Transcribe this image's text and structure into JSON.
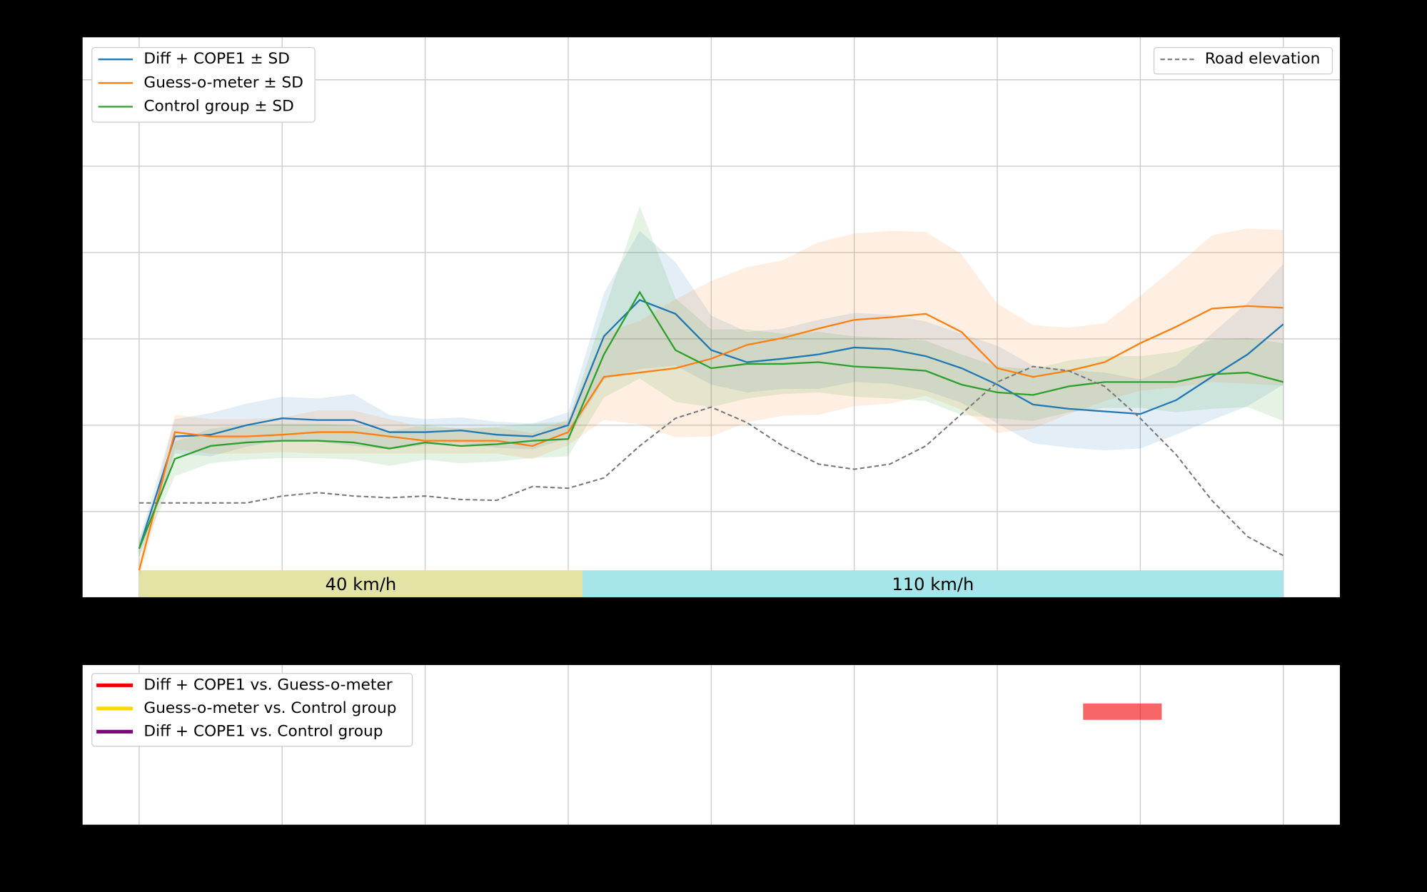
{
  "chart_data": [
    {
      "type": "line",
      "x": [
        0,
        0.25,
        0.5,
        0.75,
        1,
        1.25,
        1.5,
        1.75,
        2,
        2.25,
        2.5,
        2.75,
        3,
        3.25,
        3.5,
        3.75,
        4,
        4.25,
        4.5,
        4.75,
        5,
        5.25,
        5.5,
        5.75,
        6,
        6.25,
        6.5,
        6.75,
        7,
        7.25,
        7.5,
        7.75,
        8
      ],
      "xlim": [
        -0.4,
        8.4
      ],
      "xticks": [
        0,
        1,
        2,
        3,
        4,
        5,
        6,
        7,
        8
      ],
      "ylim": [
        0,
        6.5
      ],
      "yticks": [
        1,
        2,
        3,
        4,
        5,
        6
      ],
      "grid": true,
      "series": [
        {
          "name": "Diff + COPE1 ± SD",
          "color": "#1f77b4",
          "values": [
            0.57,
            1.87,
            1.89,
            2.0,
            2.08,
            2.06,
            2.06,
            1.92,
            1.92,
            1.94,
            1.89,
            1.87,
            2.0,
            3.03,
            3.45,
            3.29,
            2.87,
            2.73,
            2.77,
            2.82,
            2.9,
            2.88,
            2.8,
            2.66,
            2.47,
            2.24,
            2.19,
            2.16,
            2.13,
            2.29,
            2.56,
            2.82,
            3.17
          ],
          "sd": [
            0.1,
            0.2,
            0.25,
            0.25,
            0.25,
            0.25,
            0.3,
            0.2,
            0.15,
            0.15,
            0.15,
            0.15,
            0.15,
            0.5,
            0.8,
            0.6,
            0.4,
            0.35,
            0.35,
            0.4,
            0.4,
            0.4,
            0.4,
            0.4,
            0.45,
            0.45,
            0.45,
            0.45,
            0.4,
            0.4,
            0.5,
            0.6,
            0.7
          ]
        },
        {
          "name": "Guess-o-meter ± SD",
          "color": "#ff7f0e",
          "values": [
            0.32,
            1.92,
            1.87,
            1.87,
            1.89,
            1.92,
            1.92,
            1.87,
            1.82,
            1.82,
            1.82,
            1.76,
            1.92,
            2.56,
            2.61,
            2.66,
            2.77,
            2.93,
            3.01,
            3.12,
            3.22,
            3.25,
            3.29,
            3.08,
            2.66,
            2.56,
            2.63,
            2.73,
            2.95,
            3.14,
            3.35,
            3.38,
            3.36
          ],
          "sd": [
            0.1,
            0.2,
            0.2,
            0.2,
            0.2,
            0.25,
            0.25,
            0.2,
            0.15,
            0.15,
            0.15,
            0.15,
            0.15,
            0.5,
            0.6,
            0.8,
            0.9,
            0.9,
            0.9,
            1.0,
            1.0,
            1.0,
            0.95,
            0.9,
            0.75,
            0.6,
            0.5,
            0.45,
            0.55,
            0.7,
            0.85,
            0.9,
            0.9
          ]
        },
        {
          "name": "Control group ± SD",
          "color": "#2ca02c",
          "values": [
            0.57,
            1.61,
            1.76,
            1.8,
            1.82,
            1.82,
            1.8,
            1.73,
            1.8,
            1.76,
            1.78,
            1.82,
            1.84,
            2.82,
            3.54,
            2.87,
            2.66,
            2.71,
            2.71,
            2.73,
            2.68,
            2.66,
            2.63,
            2.47,
            2.38,
            2.35,
            2.45,
            2.5,
            2.5,
            2.5,
            2.59,
            2.61,
            2.5
          ],
          "sd": [
            0.1,
            0.2,
            0.2,
            0.2,
            0.2,
            0.2,
            0.2,
            0.2,
            0.2,
            0.2,
            0.2,
            0.2,
            0.2,
            0.5,
            1.0,
            0.6,
            0.45,
            0.4,
            0.35,
            0.35,
            0.35,
            0.35,
            0.35,
            0.35,
            0.3,
            0.3,
            0.3,
            0.3,
            0.3,
            0.35,
            0.4,
            0.4,
            0.45
          ]
        }
      ],
      "elevation": {
        "name": "Road elevation",
        "color": "#777777",
        "values": [
          1.1,
          1.1,
          1.1,
          1.1,
          1.18,
          1.22,
          1.18,
          1.16,
          1.18,
          1.14,
          1.13,
          1.29,
          1.27,
          1.39,
          1.76,
          2.08,
          2.21,
          2.03,
          1.76,
          1.55,
          1.49,
          1.55,
          1.76,
          2.13,
          2.5,
          2.68,
          2.63,
          2.45,
          2.08,
          1.66,
          1.13,
          0.71,
          0.49
        ]
      },
      "zones": [
        {
          "label": "40 km/h",
          "start": 0,
          "end": 3.1,
          "color": "#e3e3a6"
        },
        {
          "label": "110 km/h",
          "start": 3.1,
          "end": 8,
          "color": "#a6e6ea"
        }
      ],
      "zone_height": 0.32
    },
    {
      "type": "significance",
      "xlim": [
        -0.4,
        8.4
      ],
      "xticks": [
        0,
        1,
        2,
        3,
        4,
        5,
        6,
        7,
        8
      ],
      "grid": true,
      "series": [
        {
          "name": "Diff + COPE1 vs. Guess-o-meter",
          "color": "#ee0000",
          "intervals": [
            [
              6.6,
              7.15
            ]
          ]
        },
        {
          "name": "Guess-o-meter vs. Control group",
          "color": "#ffd700",
          "intervals": []
        },
        {
          "name": "Diff + COPE1 vs. Control group",
          "color": "#800080",
          "intervals": []
        }
      ]
    }
  ]
}
